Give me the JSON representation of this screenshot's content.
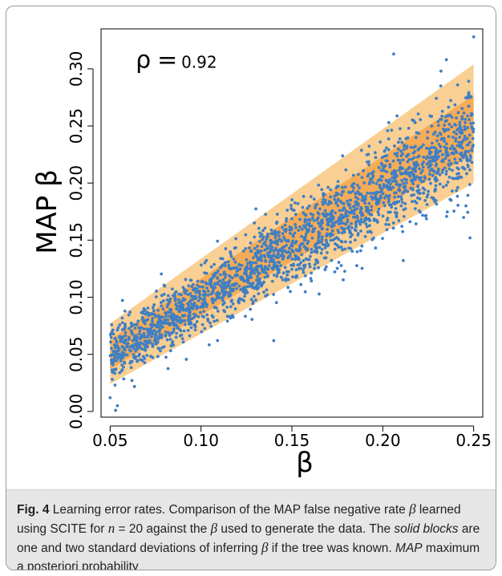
{
  "chart_data": {
    "type": "scatter",
    "title": "",
    "xlabel": "β",
    "ylabel": "MAP β",
    "xlim": [
      0.045,
      0.255
    ],
    "ylim": [
      -0.005,
      0.335
    ],
    "xticks": [
      "0.05",
      "0.10",
      "0.15",
      "0.20",
      "0.25"
    ],
    "xtick_values": [
      0.05,
      0.1,
      0.15,
      0.2,
      0.25
    ],
    "yticks": [
      "0.00",
      "0.05",
      "0.10",
      "0.15",
      "0.20",
      "0.25",
      "0.30"
    ],
    "ytick_values": [
      0.0,
      0.05,
      0.1,
      0.15,
      0.2,
      0.25,
      0.3
    ],
    "annotation": {
      "symbol": "ρ",
      "eq": "=",
      "value": "0.92",
      "x": 0.064,
      "y": 0.301
    },
    "bands": [
      {
        "kind": "two-sd",
        "x": [
          0.05,
          0.25
        ],
        "lower": [
          0.024,
          0.2
        ],
        "upper": [
          0.077,
          0.304
        ],
        "color": "#f9cf93"
      },
      {
        "kind": "one-sd",
        "x": [
          0.05,
          0.25
        ],
        "lower": [
          0.037,
          0.226
        ],
        "upper": [
          0.063,
          0.277
        ],
        "color": "#f5ac58"
      }
    ],
    "points": {
      "color": "#3f7fc4",
      "count": 2200,
      "x_range": [
        0.05,
        0.25
      ],
      "trend": {
        "intercept_at_0_05": 0.05,
        "slope": 0.95
      },
      "outliers": [
        {
          "x": 0.25,
          "y": 0.328
        },
        {
          "x": 0.206,
          "y": 0.313
        },
        {
          "x": 0.235,
          "y": 0.308
        },
        {
          "x": 0.232,
          "y": 0.298
        },
        {
          "x": 0.053,
          "y": 0.001
        },
        {
          "x": 0.054,
          "y": 0.005
        },
        {
          "x": 0.05,
          "y": 0.012
        },
        {
          "x": 0.248,
          "y": 0.152
        },
        {
          "x": 0.14,
          "y": 0.062
        }
      ]
    }
  },
  "caption": {
    "label": "Fig. 4",
    "text_1": " Learning error rates. Comparison of the MAP false negative rate ",
    "beta": "β",
    "text_2": " learned using SCITE for ",
    "n": "n",
    "text_3": " = 20 against the ",
    "text_4": " used to generate the data. The ",
    "solid_blocks": "solid blocks",
    "text_5": " are one and two standard deviations of inferring ",
    "text_6": " if the tree was known. ",
    "map": "MAP",
    "text_7": " maximum a posteriori probability"
  }
}
